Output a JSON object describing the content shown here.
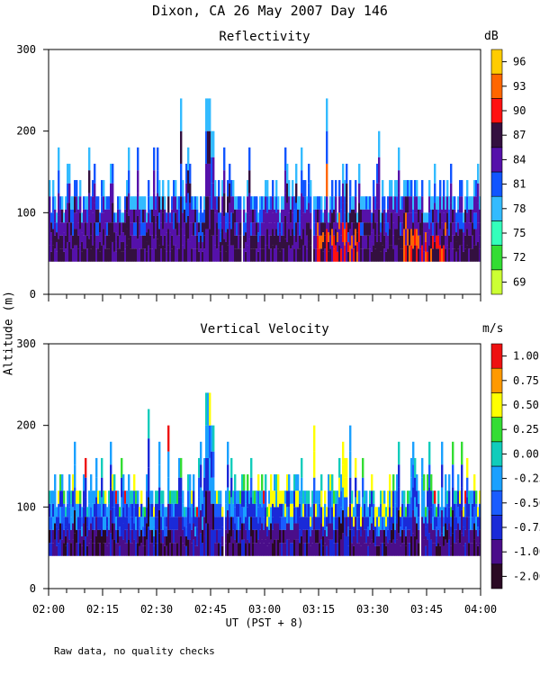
{
  "title": "Dixon, CA 26 May 2007  Day 146",
  "y_axis_label": "Altitude (m)",
  "x_axis_label": "UT  (PST + 8)",
  "footnote": "Raw data, no quality checks",
  "chart_data": [
    {
      "type": "heatmap",
      "title": "Reflectivity",
      "unit": "dB",
      "ylim": [
        0,
        300
      ],
      "yticks": [
        0,
        100,
        200,
        300
      ],
      "xlim": [
        "02:00",
        "04:00"
      ],
      "xticks": [
        "02:00",
        "02:15",
        "02:30",
        "02:45",
        "03:00",
        "03:15",
        "03:30",
        "03:45",
        "04:00"
      ],
      "data_floor_m": 40,
      "typical_top_m": 120,
      "max_altitude_m": 240,
      "colorbar_levels": [
        69,
        72,
        75,
        78,
        81,
        84,
        87,
        90,
        93,
        96
      ],
      "colorbar_colors": [
        "#ccff33",
        "#33dd33",
        "#33ffbb",
        "#33bbff",
        "#1155ff",
        "#5511aa",
        "#33103f",
        "#ff1111",
        "#ff6600",
        "#ffcc00"
      ],
      "colorbar_labels": [
        "69",
        "72",
        "75",
        "78",
        "81",
        "84",
        "87",
        "90",
        "93",
        "96"
      ]
    },
    {
      "type": "heatmap",
      "title": "Vertical Velocity",
      "unit": "m/s",
      "ylim": [
        0,
        300
      ],
      "yticks": [
        0,
        100,
        200,
        300
      ],
      "xlim": [
        "02:00",
        "04:00"
      ],
      "xticks": [
        "02:00",
        "02:15",
        "02:30",
        "02:45",
        "03:00",
        "03:15",
        "03:30",
        "03:45",
        "04:00"
      ],
      "data_floor_m": 40,
      "typical_top_m": 120,
      "max_altitude_m": 240,
      "colorbar_levels": [
        -2.0,
        -1.0,
        -0.75,
        -0.5,
        -0.25,
        0.0,
        0.25,
        0.5,
        0.75,
        1.0
      ],
      "colorbar_colors": [
        "#2a0a24",
        "#4a0e8a",
        "#1a2ad8",
        "#1a5cff",
        "#1aa0ff",
        "#11ccbb",
        "#33dd33",
        "#ffff00",
        "#ff9900",
        "#ee1111"
      ],
      "colorbar_labels": [
        "-2.00",
        "-1.00",
        "-0.75",
        "-0.50",
        "-0.25",
        "0.00",
        "0.25",
        "0.50",
        "0.75",
        "1.00"
      ]
    }
  ]
}
